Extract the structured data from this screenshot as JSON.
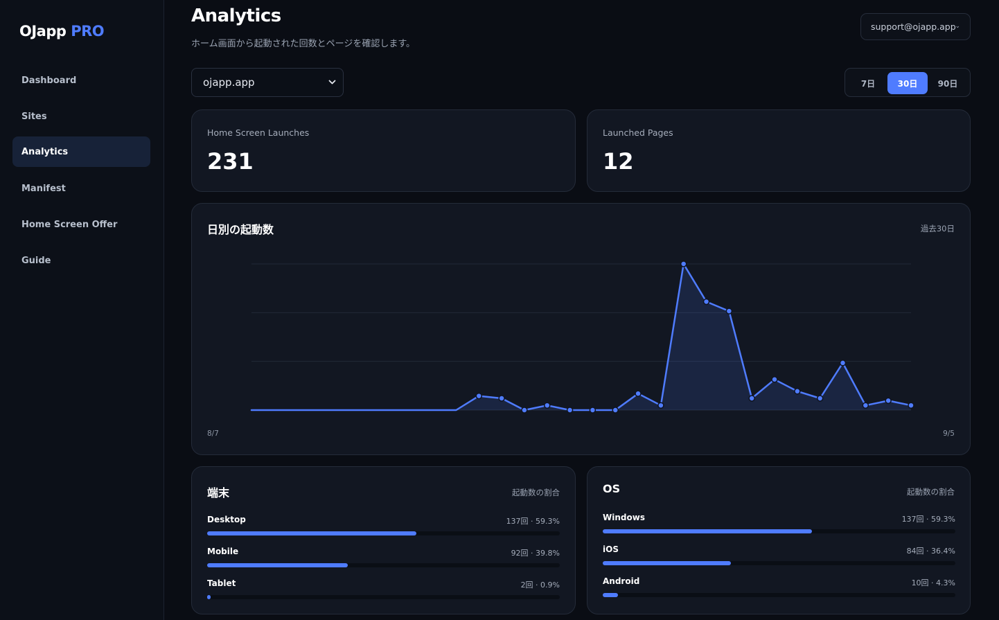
{
  "brand": {
    "name": "OJapp",
    "badge": "PRO"
  },
  "sidebar": {
    "items": [
      {
        "label": "Dashboard",
        "active": false
      },
      {
        "label": "Sites",
        "active": false
      },
      {
        "label": "Analytics",
        "active": true
      },
      {
        "label": "Manifest",
        "active": false
      },
      {
        "label": "Home Screen Offer",
        "active": false
      },
      {
        "label": "Guide",
        "active": false
      }
    ]
  },
  "header": {
    "title": "Analytics",
    "subtitle": "ホーム画面から起動された回数とページを確認します。",
    "account": "support@ojapp.app"
  },
  "filters": {
    "site": "ojapp.app",
    "ranges": [
      "7日",
      "30日",
      "90日"
    ],
    "selected_range": "30日"
  },
  "stats": [
    {
      "label": "Home Screen Launches",
      "value": "231"
    },
    {
      "label": "Launched Pages",
      "value": "12"
    }
  ],
  "daily_chart": {
    "title": "日別の起動数",
    "note": "過去30日",
    "x_start": "8/7",
    "x_end": "9/5"
  },
  "chart_data": {
    "type": "area",
    "title": "日別の起動数",
    "x": [
      "8/7",
      "8/8",
      "8/9",
      "8/10",
      "8/11",
      "8/12",
      "8/13",
      "8/14",
      "8/15",
      "8/16",
      "8/17",
      "8/18",
      "8/19",
      "8/20",
      "8/21",
      "8/22",
      "8/23",
      "8/24",
      "8/25",
      "8/26",
      "8/27",
      "8/28",
      "8/29",
      "8/30",
      "8/31",
      "9/1",
      "9/2",
      "9/3",
      "9/4",
      "9/5"
    ],
    "series": [
      {
        "values": [
          0,
          0,
          0,
          0,
          0,
          0,
          0,
          0,
          0,
          0,
          3,
          2.5,
          0,
          1,
          0,
          0,
          0,
          3.5,
          1,
          31,
          23,
          21,
          2.5,
          6.5,
          4,
          2.5,
          10,
          1,
          2,
          1
        ]
      }
    ],
    "points_marked_from_index": 10,
    "ylim": [
      0,
      31
    ],
    "gridlines": 3,
    "grid": true,
    "color": "#4f7cff"
  },
  "device_breakdown": {
    "title": "端末",
    "note": "起動数の割合",
    "rows": [
      {
        "label": "Desktop",
        "value": "137回 · 59.3%",
        "percent": 59.3
      },
      {
        "label": "Mobile",
        "value": "92回 · 39.8%",
        "percent": 39.8
      },
      {
        "label": "Tablet",
        "value": "2回 · 0.9%",
        "percent": 0.9
      }
    ]
  },
  "os_breakdown": {
    "title": "OS",
    "note": "起動数の割合",
    "rows": [
      {
        "label": "Windows",
        "value": "137回 · 59.3%",
        "percent": 59.3
      },
      {
        "label": "iOS",
        "value": "84回 · 36.4%",
        "percent": 36.4
      },
      {
        "label": "Android",
        "value": "10回 · 4.3%",
        "percent": 4.3
      }
    ]
  },
  "colors": {
    "accent": "#4f7cff",
    "background": "#0a0d14",
    "card": "#121722"
  }
}
